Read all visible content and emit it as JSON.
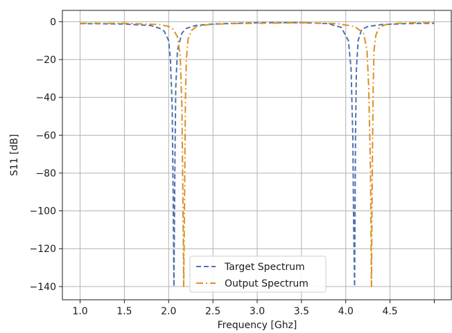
{
  "chart_data": {
    "type": "line",
    "title": "",
    "xlabel": "Frequency [Ghz]",
    "ylabel": "S11 [dB]",
    "xlim": [
      0.8,
      5.2
    ],
    "ylim": [
      -147,
      6
    ],
    "x_ticks": [
      1.0,
      1.5,
      2.0,
      2.5,
      3.0,
      3.5,
      4.0,
      4.5,
      5.0
    ],
    "x_tick_labels": [
      "1.0",
      "1.5",
      "2.0",
      "2.5",
      "3.0",
      "3.5",
      "4.0",
      "4.5",
      ""
    ],
    "y_ticks": [
      0,
      -20,
      -40,
      -60,
      -80,
      -100,
      -120,
      -140
    ],
    "y_tick_labels": [
      "0",
      "−20",
      "−40",
      "−60",
      "−80",
      "−100",
      "−120",
      "−140"
    ],
    "grid": true,
    "legend_position": "lower-center",
    "series": [
      {
        "name": "Target Spectrum",
        "color": "#4c72b0",
        "dash": "dashed",
        "x": [
          1.0,
          1.5,
          1.8,
          1.9,
          1.95,
          2.0,
          2.02,
          2.04,
          2.05,
          2.06,
          2.07,
          2.08,
          2.1,
          2.15,
          2.2,
          2.3,
          2.5,
          3.0,
          3.5,
          3.8,
          3.95,
          4.03,
          4.06,
          4.08,
          4.09,
          4.1,
          4.11,
          4.12,
          4.14,
          4.18,
          4.25,
          4.4,
          4.7,
          5.0
        ],
        "values": [
          -1,
          -1.2,
          -2,
          -3.5,
          -5,
          -10,
          -20,
          -45,
          -90,
          -140,
          -80,
          -35,
          -15,
          -6,
          -3.5,
          -2,
          -1.2,
          -0.5,
          -0.5,
          -1,
          -3,
          -10,
          -25,
          -60,
          -110,
          -140,
          -60,
          -25,
          -10,
          -4,
          -2.5,
          -1.5,
          -1,
          -0.8
        ]
      },
      {
        "name": "Output Spectrum",
        "color": "#dd8f22",
        "dash": "dashdot",
        "x": [
          1.0,
          1.5,
          1.9,
          2.0,
          2.05,
          2.1,
          2.13,
          2.15,
          2.16,
          2.17,
          2.18,
          2.19,
          2.2,
          2.22,
          2.26,
          2.32,
          2.45,
          2.7,
          3.0,
          3.5,
          3.9,
          4.1,
          4.2,
          4.24,
          4.26,
          4.28,
          4.29,
          4.3,
          4.31,
          4.32,
          4.34,
          4.38,
          4.45,
          4.6,
          4.8,
          5.0
        ],
        "values": [
          -0.8,
          -0.8,
          -1.5,
          -2.5,
          -4,
          -8,
          -18,
          -45,
          -90,
          -140,
          -90,
          -40,
          -20,
          -9,
          -4.5,
          -2.5,
          -1.5,
          -1,
          -0.8,
          -0.5,
          -1,
          -2.5,
          -6,
          -15,
          -35,
          -80,
          -140,
          -80,
          -35,
          -15,
          -7,
          -3,
          -1.5,
          -0.8,
          -0.5,
          -0.4
        ]
      }
    ]
  }
}
